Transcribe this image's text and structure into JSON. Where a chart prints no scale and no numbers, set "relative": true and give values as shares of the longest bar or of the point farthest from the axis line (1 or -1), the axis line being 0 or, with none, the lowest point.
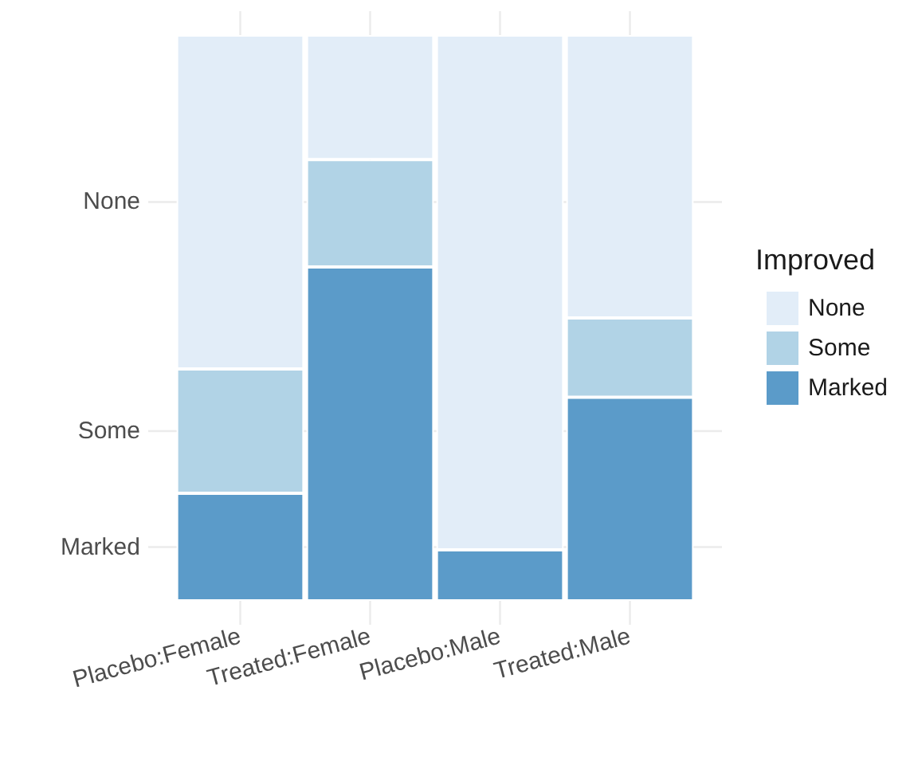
{
  "chart_data": {
    "type": "bar",
    "stacked": true,
    "relative": true,
    "categories": [
      "Placebo:Female",
      "Treated:Female",
      "Placebo:Male",
      "Treated:Male"
    ],
    "series": [
      {
        "name": "Marked",
        "color": "#5b9bc9",
        "values": [
          0.19,
          0.59,
          0.09,
          0.36
        ]
      },
      {
        "name": "Some",
        "color": "#b1d3e6",
        "values": [
          0.22,
          0.19,
          0,
          0.14
        ]
      },
      {
        "name": "None",
        "color": "#e2edf8",
        "values": [
          0.59,
          0.22,
          0.91,
          0.5
        ]
      }
    ],
    "legend": "right",
    "legend_title": "Improved",
    "grid": true
  }
}
